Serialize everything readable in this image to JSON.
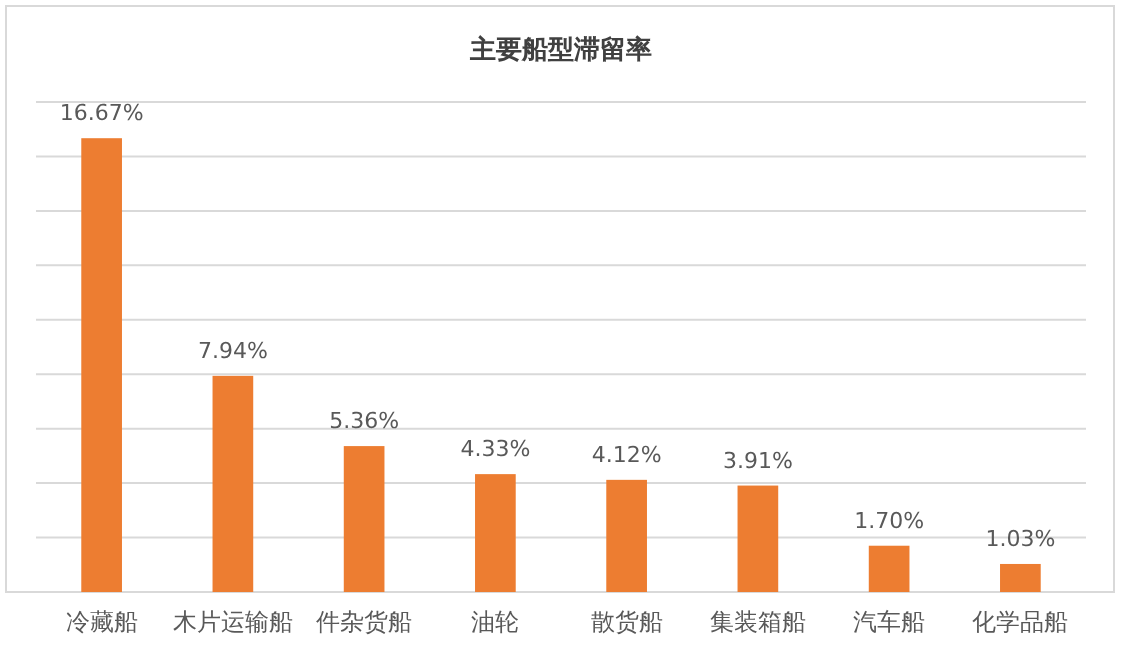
{
  "chart_data": {
    "type": "bar",
    "title": "主要船型滞留率",
    "categories": [
      "冷藏船",
      "木片运输船",
      "件杂货船",
      "油轮",
      "散货船",
      "集装箱船",
      "汽车船",
      "化学品船"
    ],
    "values": [
      16.67,
      7.94,
      5.36,
      4.33,
      4.12,
      3.91,
      1.7,
      1.03
    ],
    "value_labels": [
      "16.67%",
      "7.94%",
      "5.36%",
      "4.33%",
      "4.12%",
      "3.91%",
      "1.70%",
      "1.03%"
    ],
    "color": "#ed7d31",
    "ylim": [
      0,
      18
    ],
    "yticks": [
      {
        "value": 0,
        "label": null
      },
      {
        "value": 2,
        "label": null
      },
      {
        "value": 4,
        "label": null
      },
      {
        "value": 6,
        "label": null
      },
      {
        "value": 8,
        "label": null
      },
      {
        "value": 10,
        "label": null
      },
      {
        "value": 12,
        "label": null
      },
      {
        "value": 14,
        "label": null
      },
      {
        "value": 16,
        "label": null
      },
      {
        "value": 18,
        "label": null
      }
    ],
    "tick_labels": "x",
    "grid": "y"
  }
}
